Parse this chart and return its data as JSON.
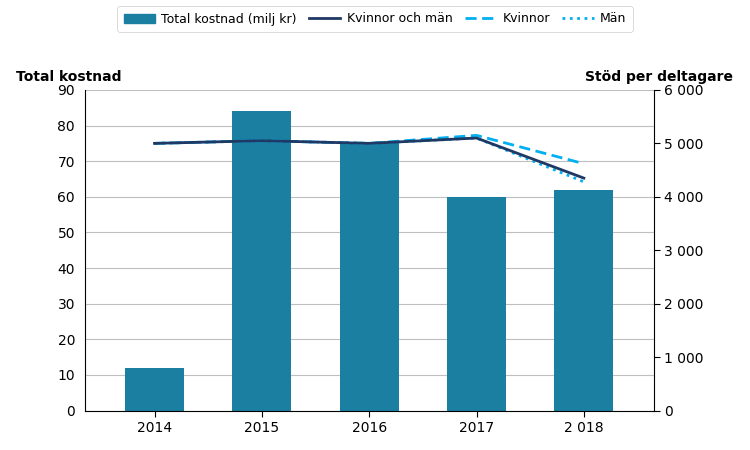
{
  "years": [
    2014,
    2015,
    2016,
    2017,
    2018
  ],
  "year_labels": [
    "2014",
    "2015",
    "2016",
    "2017",
    "2 018"
  ],
  "bar_values": [
    12,
    84,
    75,
    60,
    62
  ],
  "bar_color": "#1a7fa0",
  "line_total": [
    5000,
    5050,
    5000,
    5100,
    4350
  ],
  "line_kvinnor": [
    5000,
    5050,
    5000,
    5150,
    4620
  ],
  "line_man": [
    5000,
    5050,
    5000,
    5100,
    4280
  ],
  "line_color_total": "#1f3864",
  "line_color_kvinnor": "#00b0f0",
  "line_color_man": "#00b0f0",
  "left_ylabel": "Total kostnad",
  "right_ylabel": "Stöd per deltagare",
  "ylim_left": [
    0,
    90
  ],
  "ylim_right": [
    0,
    6000
  ],
  "yticks_left": [
    0,
    10,
    20,
    30,
    40,
    50,
    60,
    70,
    80,
    90
  ],
  "yticks_right": [
    0,
    1000,
    2000,
    3000,
    4000,
    5000,
    6000
  ],
  "ytick_right_labels": [
    "0",
    "1 000",
    "2 000",
    "3 000",
    "4 000",
    "5 000",
    "6 000"
  ],
  "legend_labels": [
    "Total kostnad (milj kr)",
    "Kvinnor och män",
    "Kvinnor",
    "Män"
  ],
  "background_color": "#ffffff",
  "grid_color": "#bfbfbf"
}
